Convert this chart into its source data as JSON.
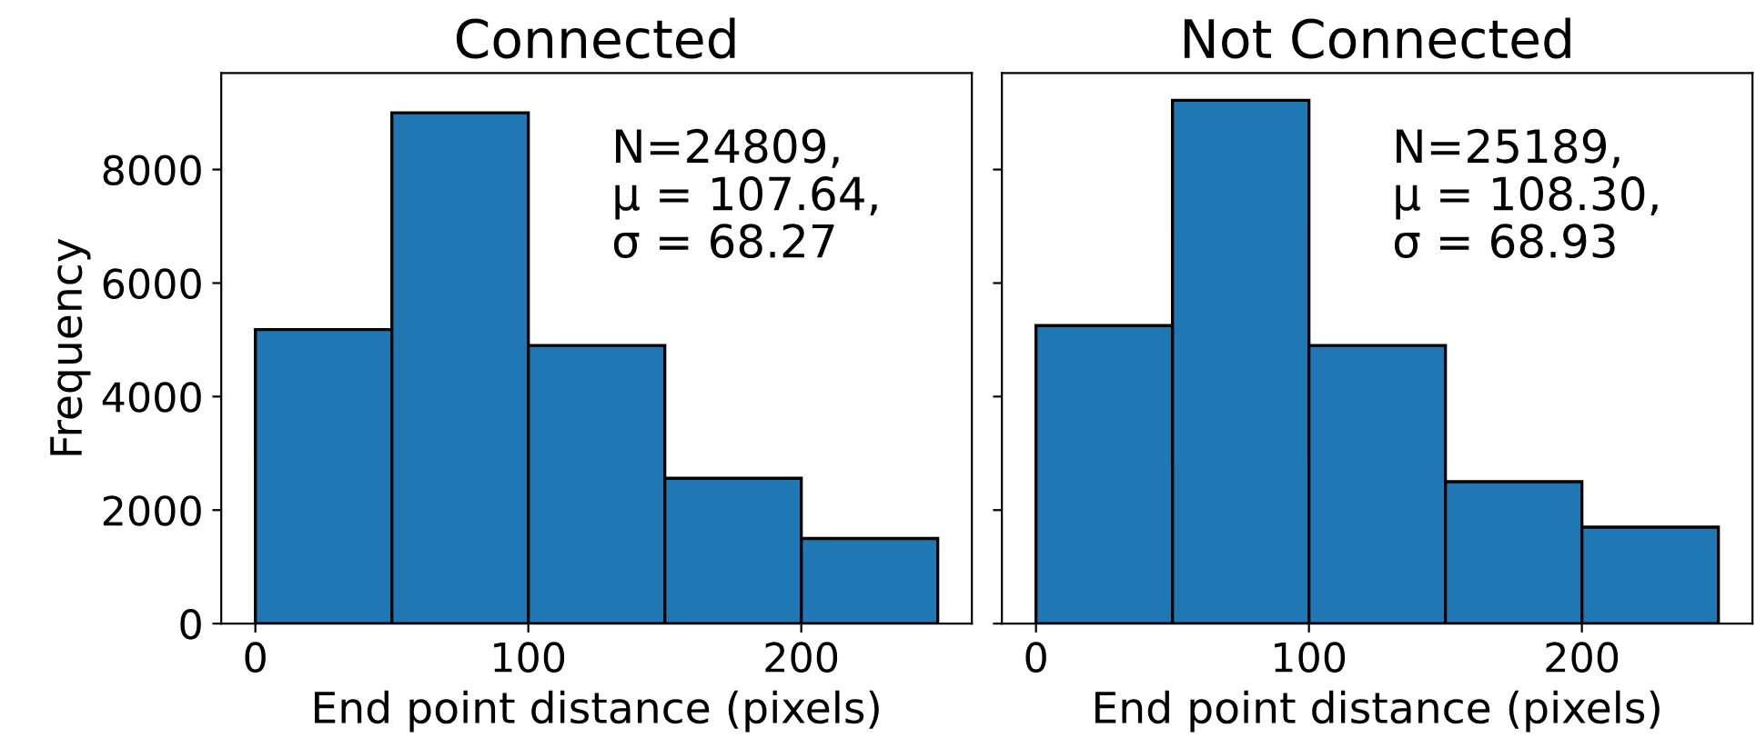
{
  "chart_data": [
    {
      "type": "histogram",
      "title": "Connected",
      "xlabel": "End point distance (pixels)",
      "ylabel": "Frequency",
      "bins": [
        0,
        50,
        100,
        150,
        200,
        250
      ],
      "values": [
        5180,
        9000,
        4900,
        2560,
        1500
      ],
      "color": "#1f77b4",
      "xlim": [
        -12.5,
        262.5
      ],
      "xticks": [
        0,
        100,
        200
      ],
      "ylim": [
        0,
        9700
      ],
      "yticks": [
        0,
        2000,
        4000,
        6000,
        8000
      ],
      "grid": false,
      "annotations": [
        "N=24809,\nμ = 107.64,\nσ = 68.27"
      ]
    },
    {
      "type": "histogram",
      "title": "Not Connected",
      "xlabel": "End point distance (pixels)",
      "bins": [
        0,
        50,
        100,
        150,
        200,
        250
      ],
      "values": [
        5250,
        9220,
        4900,
        2500,
        1700
      ],
      "color": "#1f77b4",
      "xlim": [
        -12.5,
        262.5
      ],
      "xticks": [
        0,
        100,
        200
      ],
      "ylim": [
        0,
        9700
      ],
      "yticks": [
        0,
        2000,
        4000,
        6000,
        8000
      ],
      "grid": false,
      "tick_labels": "x",
      "annotations": [
        "N=25189,\nμ = 108.30,\nσ = 68.93"
      ]
    }
  ]
}
